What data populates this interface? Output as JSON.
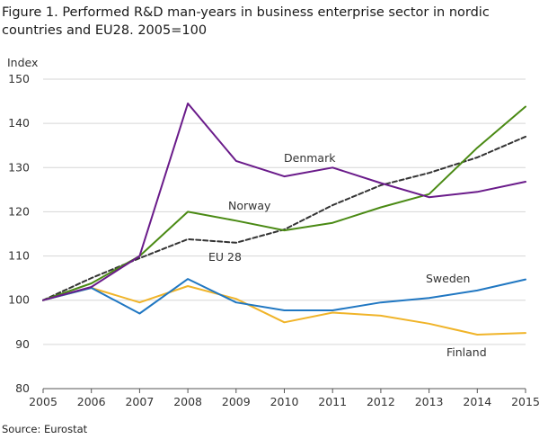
{
  "figure": {
    "title": "Figure 1. Performed R&D man-years in business enterprise sector in nordic countries and EU28. 2005=100",
    "source": "Source: Eurostat"
  },
  "chart_data": {
    "type": "line",
    "title": "Figure 1. Performed R&D man-years in business enterprise sector in nordic countries and EU28. 2005=100",
    "xlabel": "",
    "ylabel": "Index",
    "x": [
      "2005",
      "2006",
      "2007",
      "2008",
      "2009",
      "2010",
      "2011",
      "2012",
      "2013",
      "2014",
      "2015"
    ],
    "ylim": [
      80,
      150
    ],
    "yticks": [
      80,
      90,
      100,
      110,
      120,
      130,
      140,
      150
    ],
    "grid": "horizontal",
    "legend": "direct labels",
    "series": [
      {
        "name": "Denmark",
        "color": "#6a1b8a",
        "dash": false,
        "values": [
          100,
          103,
          110,
          144.5,
          131.5,
          128,
          130,
          126.5,
          123.3,
          124.5,
          126.8
        ]
      },
      {
        "name": "Norway",
        "color": "#4a8a14",
        "dash": false,
        "values": [
          100,
          103.8,
          110,
          120,
          118,
          115.8,
          117.5,
          121,
          124,
          134.5,
          143.8
        ]
      },
      {
        "name": "EU 28",
        "color": "#333333",
        "dash": true,
        "values": [
          100,
          105,
          109.5,
          113.8,
          113,
          116,
          121.5,
          126,
          128.8,
          132.3,
          137
        ]
      },
      {
        "name": "Sweden",
        "color": "#2077c2",
        "dash": false,
        "values": [
          100,
          102.8,
          97,
          104.8,
          99.5,
          97.7,
          97.7,
          99.5,
          100.5,
          102.2,
          104.7
        ]
      },
      {
        "name": "Finland",
        "color": "#f0b429",
        "dash": false,
        "values": [
          100,
          102.8,
          99.5,
          103.2,
          100.3,
          95,
          97.2,
          96.5,
          94.7,
          92.2,
          92.6
        ]
      }
    ]
  }
}
